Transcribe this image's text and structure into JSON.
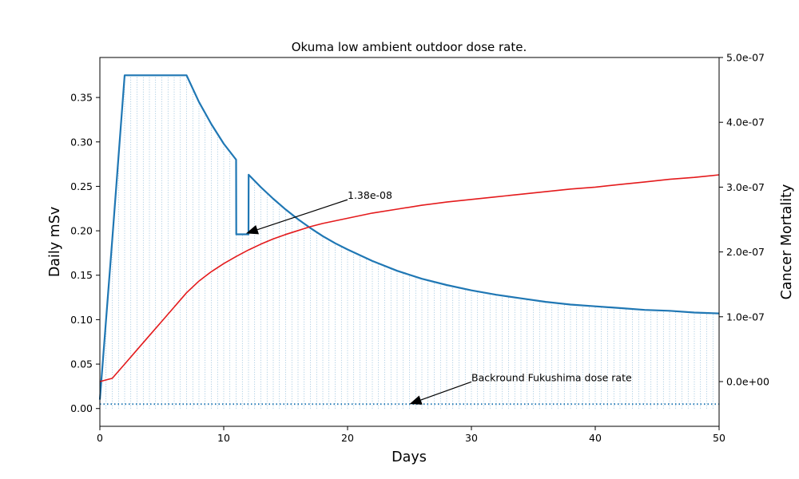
{
  "chart_data": {
    "type": "line",
    "title": "Okuma low ambient outdoor dose rate.",
    "xlabel": "Days",
    "ylabel": "Daily mSv",
    "y2label": "Cancer Mortality",
    "xlim": [
      0,
      50
    ],
    "ylim": [
      -0.02,
      0.395
    ],
    "y2lim": [
      -6.9e-08,
      5e-07
    ],
    "xticks": [
      0,
      10,
      20,
      30,
      40,
      50
    ],
    "yticks": [
      0.0,
      0.05,
      0.1,
      0.15,
      0.2,
      0.25,
      0.3,
      0.35
    ],
    "y2ticks": [
      0.0,
      1e-07,
      2e-07,
      3e-07,
      4e-07,
      5e-07
    ],
    "xtick_labels": [
      "0",
      "10",
      "20",
      "30",
      "40",
      "50"
    ],
    "ytick_labels": [
      "0.00",
      "0.05",
      "0.10",
      "0.15",
      "0.20",
      "0.25",
      "0.30",
      "0.35"
    ],
    "y2tick_labels": [
      "0.0e+00",
      "1.0e-07",
      "2.0e-07",
      "3.0e-07",
      "4.0e-07",
      "5.0e-07"
    ],
    "grid": false,
    "colors": {
      "dose": "#1f77b4",
      "mortality": "#e41a1c",
      "background": "#1f77b4"
    },
    "series": [
      {
        "axis": "left",
        "x": [
          0,
          1,
          2,
          3,
          4,
          5,
          6,
          7,
          8,
          9,
          10,
          11,
          11.01,
          12,
          12.01,
          13,
          14,
          15,
          16,
          17,
          18,
          19,
          20,
          22,
          24,
          26,
          28,
          30,
          32,
          34,
          36,
          38,
          40,
          42,
          44,
          46,
          48,
          50
        ],
        "y": [
          0.01,
          0.19,
          0.375,
          0.375,
          0.375,
          0.375,
          0.375,
          0.375,
          0.345,
          0.32,
          0.298,
          0.28,
          0.196,
          0.196,
          0.263,
          0.249,
          0.236,
          0.224,
          0.213,
          0.203,
          0.194,
          0.186,
          0.179,
          0.166,
          0.155,
          0.146,
          0.139,
          0.133,
          0.128,
          0.124,
          0.12,
          0.117,
          0.115,
          0.113,
          0.111,
          0.11,
          0.108,
          0.107
        ]
      },
      {
        "axis": "right",
        "x": [
          0,
          1,
          2,
          3,
          4,
          5,
          6,
          7,
          8,
          9,
          10,
          11,
          12,
          13,
          14,
          15,
          16,
          17,
          18,
          19,
          20,
          22,
          24,
          26,
          28,
          30,
          32,
          34,
          36,
          38,
          40,
          42,
          44,
          46,
          48,
          50
        ],
        "y": [
          0.0,
          5e-09,
          2.7e-08,
          4.9e-08,
          7.1e-08,
          9.3e-08,
          1.15e-07,
          1.37e-07,
          1.55e-07,
          1.695e-07,
          1.82e-07,
          1.93e-07,
          2.03e-07,
          2.12e-07,
          2.2e-07,
          2.27e-07,
          2.33e-07,
          2.39e-07,
          2.44e-07,
          2.48e-07,
          2.52e-07,
          2.6e-07,
          2.66e-07,
          2.72e-07,
          2.77e-07,
          2.81e-07,
          2.85e-07,
          2.89e-07,
          2.93e-07,
          2.97e-07,
          3e-07,
          3.04e-07,
          3.08e-07,
          3.12e-07,
          3.15e-07,
          3.19e-07
        ]
      }
    ],
    "background_level": 0.005,
    "annotations": [
      {
        "text": "1.38e-08",
        "text_xy": [
          20,
          0.235
        ],
        "arrow_to": [
          11.8,
          0.197
        ]
      },
      {
        "text": "Backround Fukushima dose rate",
        "text_xy": [
          30,
          0.03
        ],
        "arrow_to": [
          25,
          0.005
        ]
      }
    ]
  }
}
